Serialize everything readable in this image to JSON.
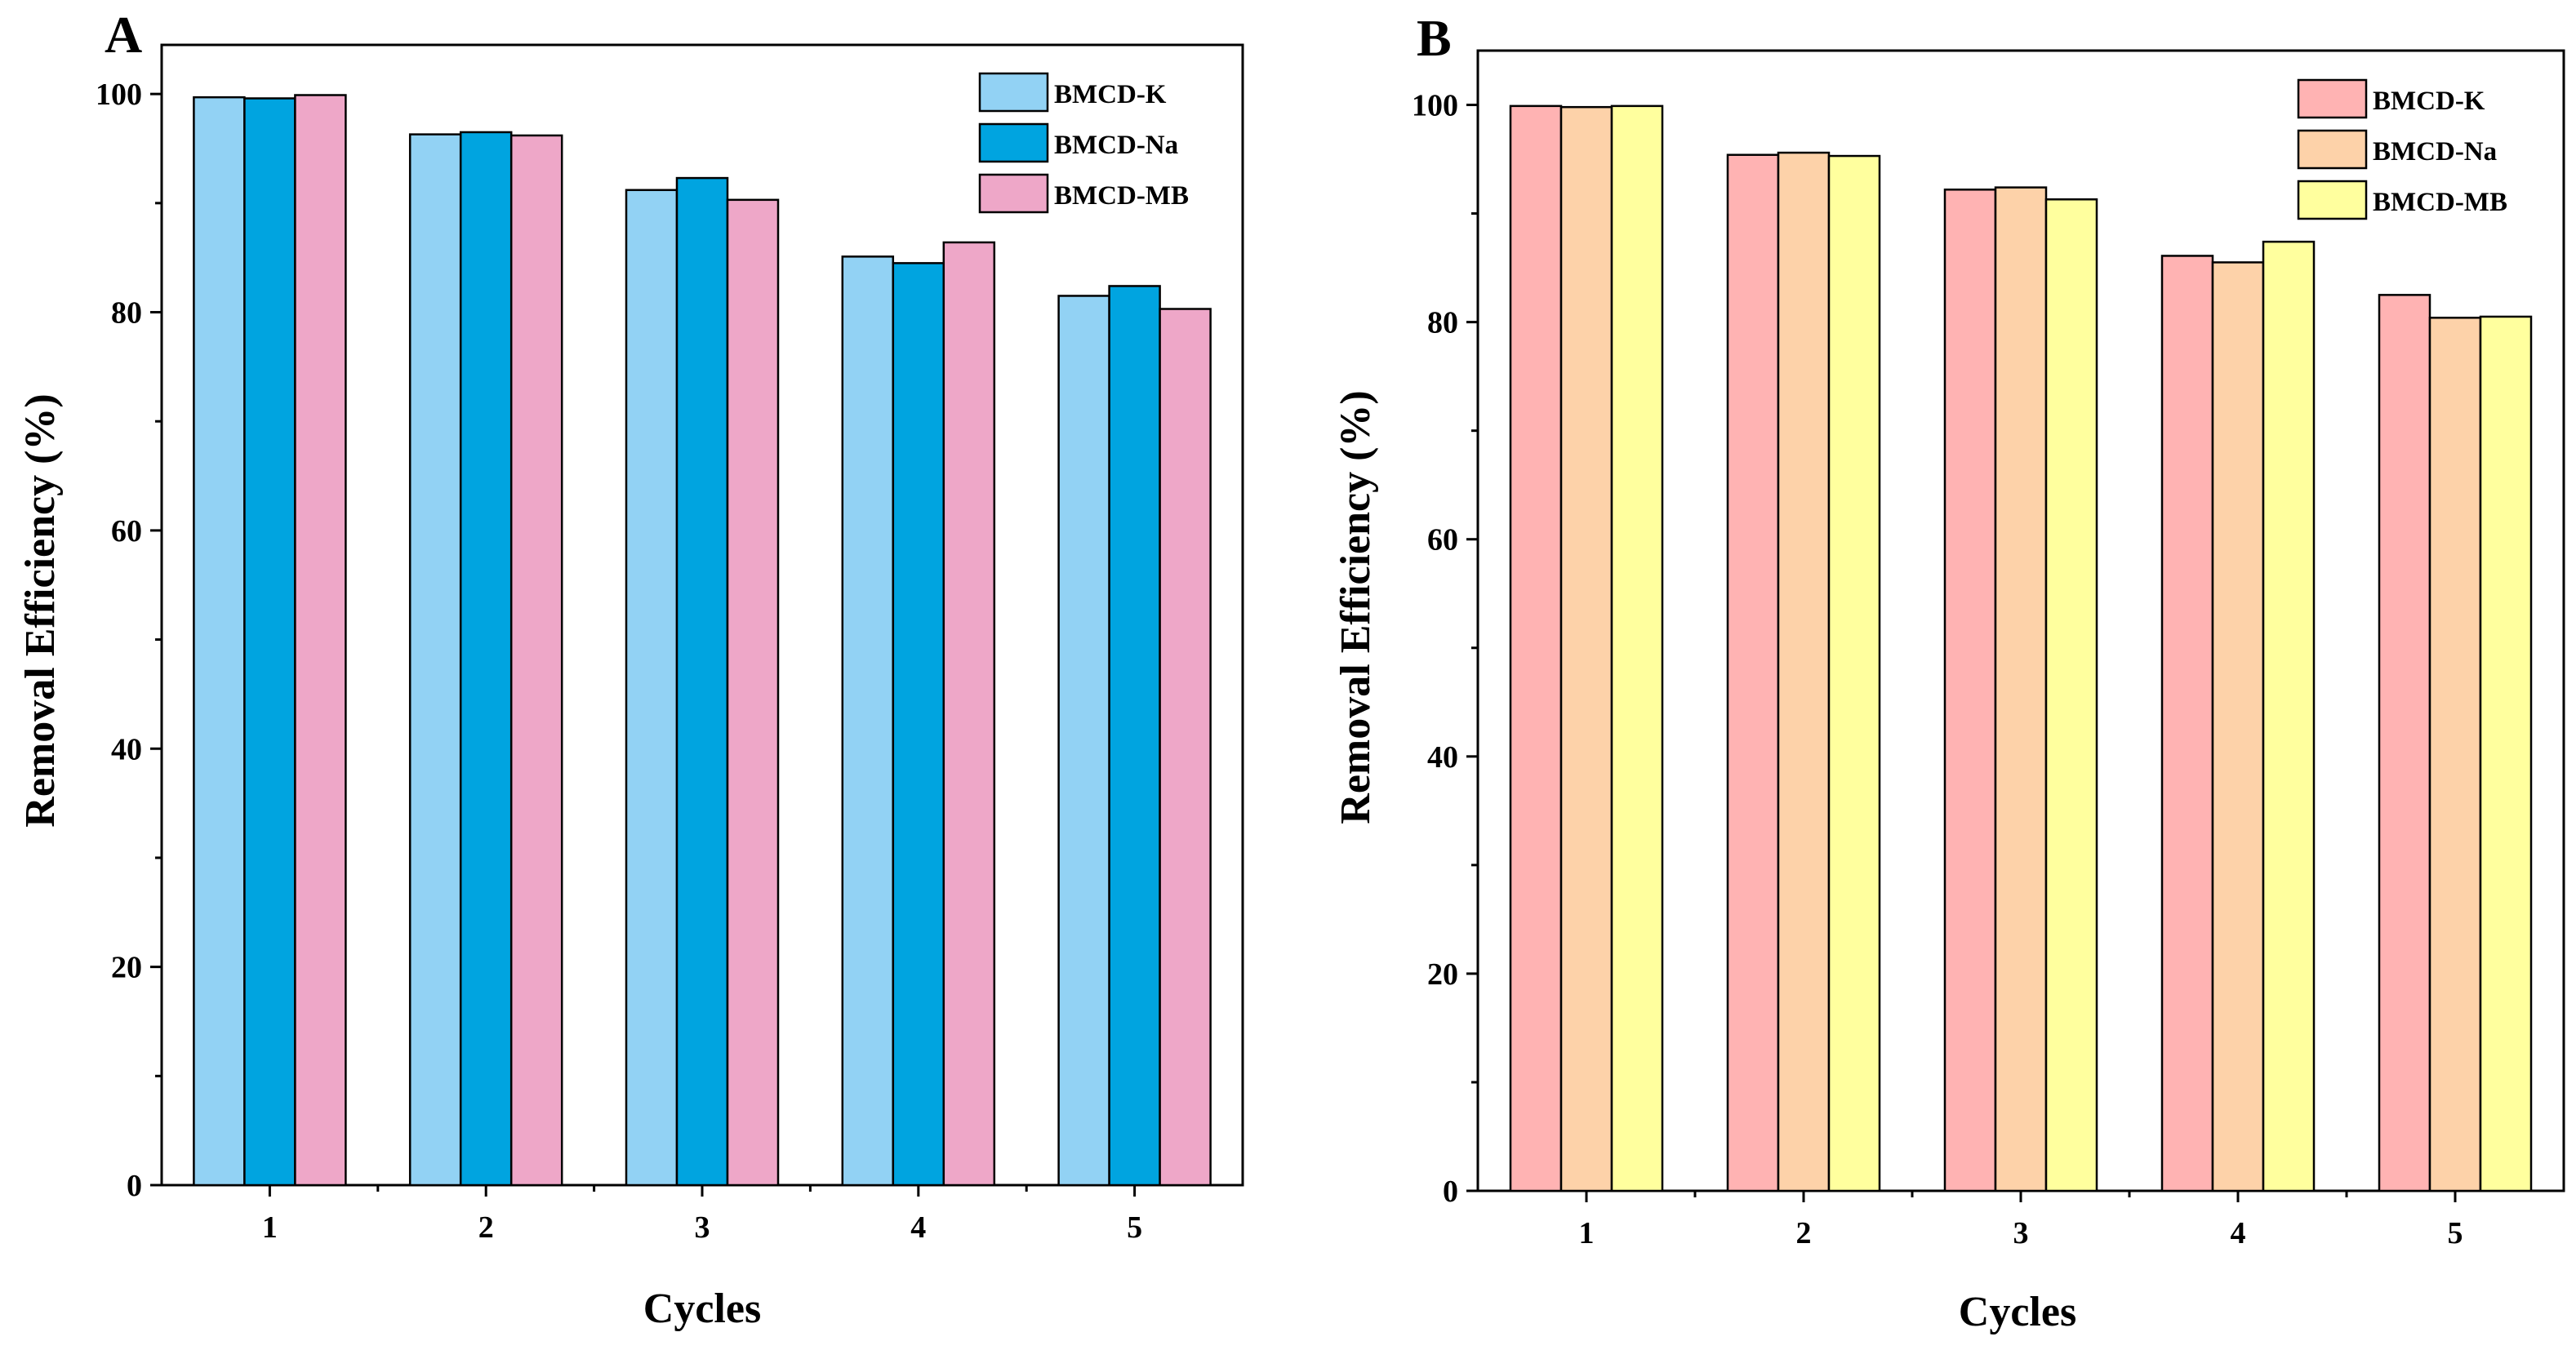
{
  "chart_data": [
    {
      "panel_label": "A",
      "type": "bar",
      "xlabel": "Cycles",
      "ylabel": "Removal Efficiency (%)",
      "ylim": [
        0,
        104.5
      ],
      "yticks": [
        0,
        20,
        40,
        60,
        80,
        100
      ],
      "categories": [
        "1",
        "2",
        "3",
        "4",
        "5"
      ],
      "legend_position": "top-right",
      "series": [
        {
          "name": "BMCD-K",
          "color": "#92d2f4",
          "values": [
            99.7,
            96.3,
            91.2,
            85.1,
            81.5
          ]
        },
        {
          "name": "BMCD-Na",
          "color": "#00a4e0",
          "values": [
            99.6,
            96.5,
            92.3,
            84.5,
            82.4
          ]
        },
        {
          "name": "BMCD-MB",
          "color": "#eea7c8",
          "values": [
            99.9,
            96.2,
            90.3,
            86.4,
            80.3
          ]
        }
      ]
    },
    {
      "panel_label": "B",
      "type": "bar",
      "xlabel": "Cycles",
      "ylabel": "Removal Efficiency (%)",
      "ylim": [
        0,
        105
      ],
      "yticks": [
        0,
        20,
        40,
        60,
        80,
        100
      ],
      "categories": [
        "1",
        "2",
        "3",
        "4",
        "5"
      ],
      "legend_position": "top-right",
      "series": [
        {
          "name": "BMCD-K",
          "color": "#ffb3b3",
          "values": [
            99.9,
            95.4,
            92.2,
            86.1,
            82.5
          ]
        },
        {
          "name": "BMCD-Na",
          "color": "#fdd2a9",
          "values": [
            99.8,
            95.6,
            92.4,
            85.5,
            80.4
          ]
        },
        {
          "name": "BMCD-MB",
          "color": "#ffff9e",
          "values": [
            99.9,
            95.3,
            91.3,
            87.4,
            80.5
          ]
        }
      ]
    }
  ]
}
